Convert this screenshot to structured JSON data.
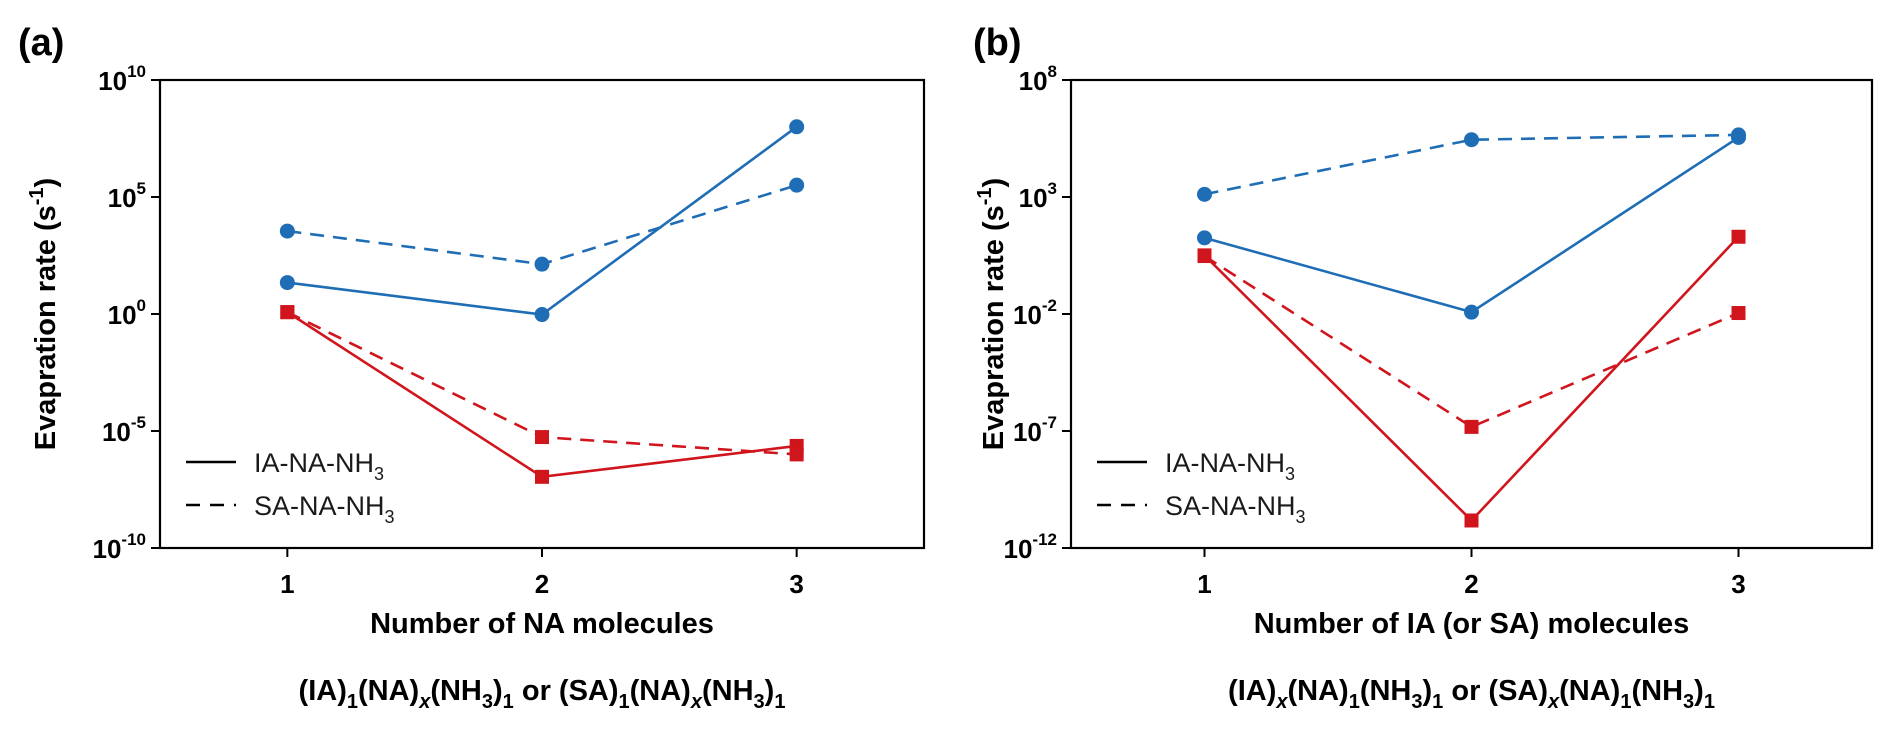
{
  "colors": {
    "blue": "#1f6eb5",
    "red": "#d0151c",
    "axis": "#000000"
  },
  "chart_data": [
    {
      "type": "line",
      "panel_label": "(a)",
      "xlabel": "Number of NA molecules",
      "formula": {
        "text": "(IA)1(NA)x(NH3)1 or (SA)1(NA)x(NH3)1",
        "parts": [
          [
            "(IA)",
            "n"
          ],
          [
            "1",
            "sub"
          ],
          [
            "(NA)",
            "n"
          ],
          [
            "x",
            "subi"
          ],
          [
            "(NH",
            "n"
          ],
          [
            "3",
            "sub"
          ],
          [
            ")",
            "n"
          ],
          [
            "1",
            "sub"
          ],
          [
            " or (SA)",
            "n"
          ],
          [
            "1",
            "sub"
          ],
          [
            "(NA)",
            "n"
          ],
          [
            "x",
            "subi"
          ],
          [
            "(NH",
            "n"
          ],
          [
            "3",
            "sub"
          ],
          [
            ")",
            "n"
          ],
          [
            "1",
            "sub"
          ]
        ]
      },
      "ylabel": "Evapration rate (s-1)",
      "yscale": "log",
      "ylim_exp": [
        -10,
        10
      ],
      "yticks": [
        {
          "base": "10",
          "exp": "10"
        },
        {
          "base": "10",
          "exp": "5"
        },
        {
          "base": "10",
          "exp": "0"
        },
        {
          "base": "10",
          "exp": "-5"
        },
        {
          "base": "10",
          "exp": "-10"
        }
      ],
      "yticks_exp": [
        10,
        5,
        0,
        -5,
        -10
      ],
      "xlim": [
        0.5,
        3.5
      ],
      "x": [
        1,
        2,
        3
      ],
      "xticks": [
        "1",
        "2",
        "3"
      ],
      "legend": {
        "position": "lower-left",
        "entries": [
          {
            "label": "IA-NA-NH",
            "sub": "3",
            "linestyle": "solid"
          },
          {
            "label": "SA-NA-NH",
            "sub": "3",
            "linestyle": "dashed"
          }
        ]
      },
      "series": [
        {
          "color": "blue",
          "marker": "circle",
          "linestyle": "solid",
          "values": [
            22,
            0.95,
            100000000.0
          ]
        },
        {
          "color": "blue",
          "marker": "circle",
          "linestyle": "dashed",
          "values": [
            3500,
            135,
            320000.0
          ]
        },
        {
          "color": "red",
          "marker": "square",
          "linestyle": "solid",
          "values": [
            1.2,
            1.1e-07,
            2.3e-06
          ]
        },
        {
          "color": "red",
          "marker": "square",
          "linestyle": "dashed",
          "values": [
            1.2,
            5.5e-06,
            1e-06
          ]
        }
      ]
    },
    {
      "type": "line",
      "panel_label": "(b)",
      "xlabel": "Number of IA (or SA) molecules",
      "formula": {
        "text": "(IA)x(NA)1(NH3)1 or (SA)x(NA)1(NH3)1",
        "parts": [
          [
            "(IA)",
            "n"
          ],
          [
            "x",
            "subi"
          ],
          [
            "(NA)",
            "n"
          ],
          [
            "1",
            "sub"
          ],
          [
            "(NH",
            "n"
          ],
          [
            "3",
            "sub"
          ],
          [
            ")",
            "n"
          ],
          [
            "1",
            "sub"
          ],
          [
            " or (SA)",
            "n"
          ],
          [
            "x",
            "subi"
          ],
          [
            "(NA)",
            "n"
          ],
          [
            "1",
            "sub"
          ],
          [
            "(NH",
            "n"
          ],
          [
            "3",
            "sub"
          ],
          [
            ")",
            "n"
          ],
          [
            "1",
            "sub"
          ]
        ]
      },
      "ylabel": "Evapration rate (s-1)",
      "yscale": "log",
      "ylim_exp": [
        -12,
        8
      ],
      "yticks": [
        {
          "base": "10",
          "exp": "8"
        },
        {
          "base": "10",
          "exp": "3"
        },
        {
          "base": "10",
          "exp": "-2"
        },
        {
          "base": "10",
          "exp": "-7"
        },
        {
          "base": "10",
          "exp": "-12"
        }
      ],
      "yticks_exp": [
        8,
        3,
        -2,
        -7,
        -12
      ],
      "xlim": [
        0.5,
        3.5
      ],
      "x": [
        1,
        2,
        3
      ],
      "xticks": [
        "1",
        "2",
        "3"
      ],
      "legend": {
        "position": "lower-left",
        "entries": [
          {
            "label": "IA-NA-NH",
            "sub": "3",
            "linestyle": "solid"
          },
          {
            "label": "SA-NA-NH",
            "sub": "3",
            "linestyle": "dashed"
          }
        ]
      },
      "series": [
        {
          "color": "blue",
          "marker": "circle",
          "linestyle": "solid",
          "values": [
            18,
            0.012,
            350000.0
          ]
        },
        {
          "color": "blue",
          "marker": "circle",
          "linestyle": "dashed",
          "values": [
            1300,
            280000.0,
            450000.0
          ]
        },
        {
          "color": "red",
          "marker": "square",
          "linestyle": "solid",
          "values": [
            3.2,
            1.5e-11,
            20
          ]
        },
        {
          "color": "red",
          "marker": "square",
          "linestyle": "dashed",
          "values": [
            3.0,
            1.5e-07,
            0.011
          ]
        }
      ]
    }
  ]
}
